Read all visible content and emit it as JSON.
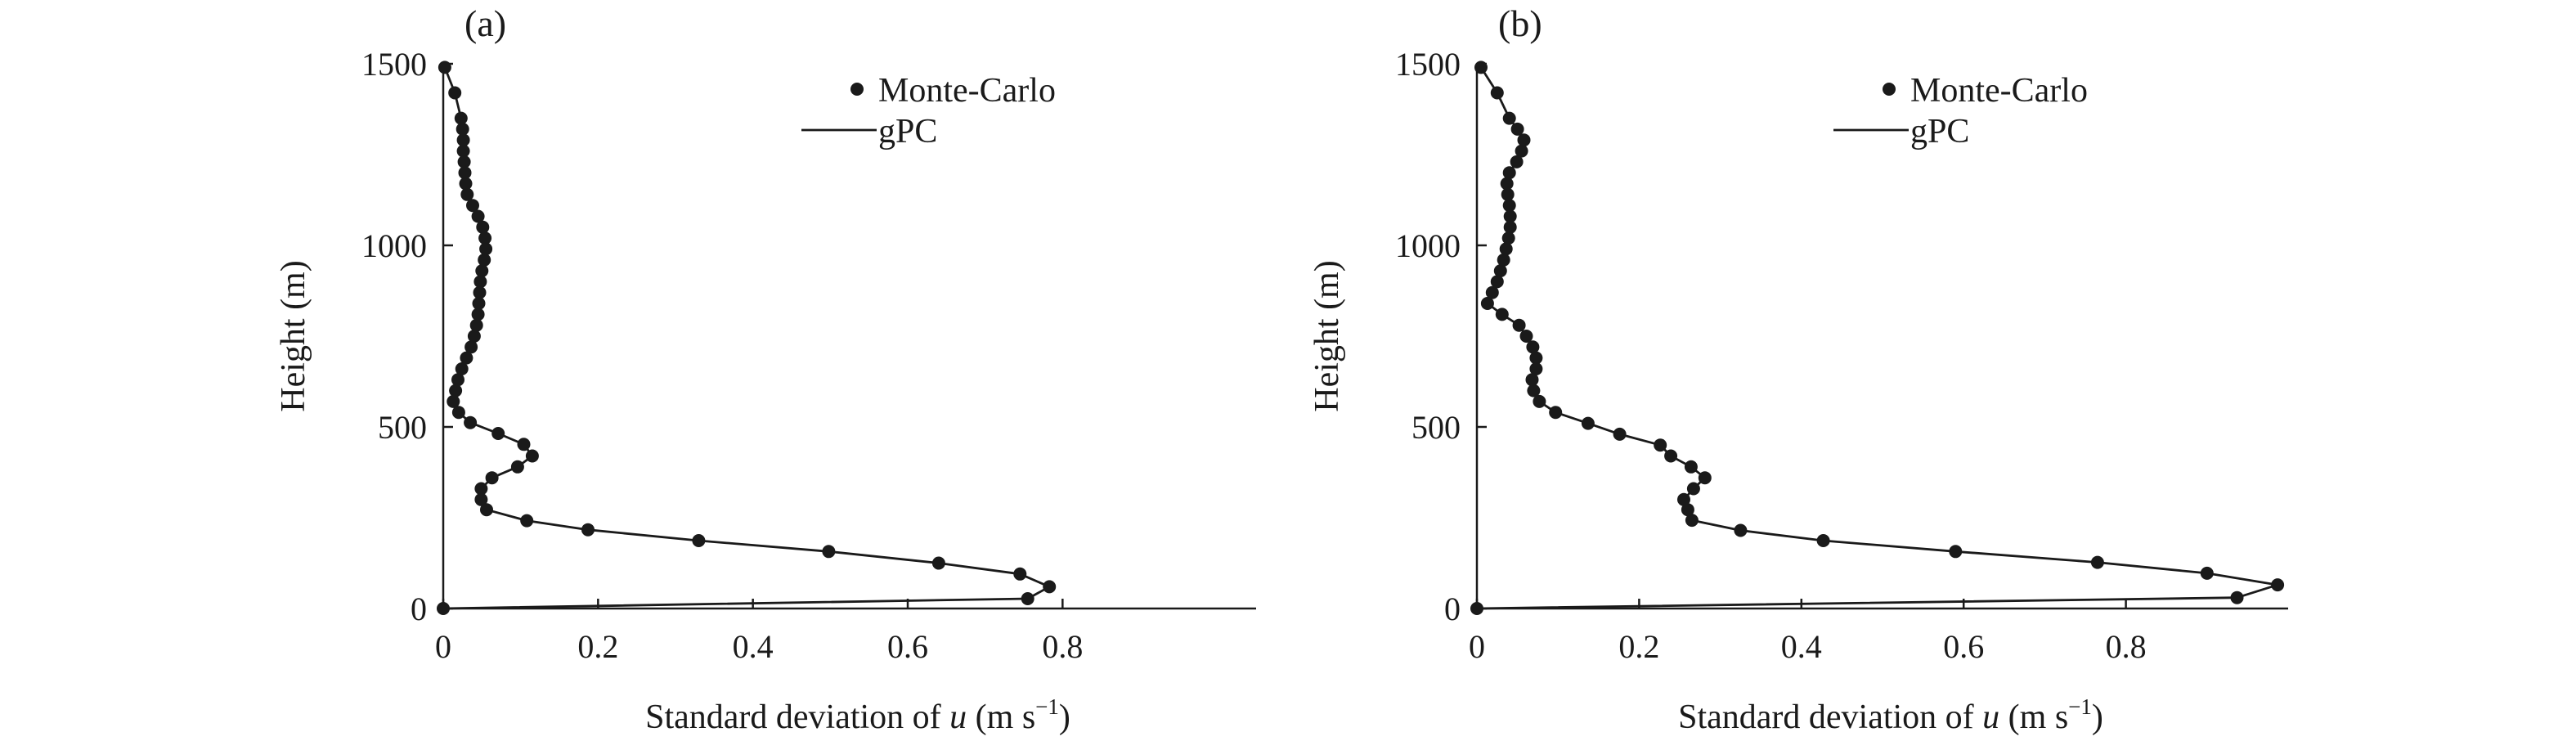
{
  "chart_data": [
    {
      "type": "line",
      "panel_label": "(a)",
      "xlabel_prefix": "Standard deviation of ",
      "xlabel_var": "u",
      "xlabel_unit_open": " (m s",
      "xlabel_unit_exp": "−1",
      "xlabel_unit_close": ")",
      "ylabel": "Height (m)",
      "xlim": [
        0,
        1.05
      ],
      "ylim": [
        0,
        1500
      ],
      "xticks": [
        0,
        0.2,
        0.4,
        0.6,
        0.8
      ],
      "xtick_labels": [
        "0",
        "0.2",
        "0.4",
        "0.6",
        "0.8"
      ],
      "yticks": [
        0,
        500,
        1000,
        1500
      ],
      "ytick_labels": [
        "0",
        "500",
        "1000",
        "1500"
      ],
      "grid": false,
      "legend_position": "top-right",
      "legend": [
        {
          "marker": "dot",
          "label": "Monte-Carlo"
        },
        {
          "marker": "line",
          "label": "gPC"
        }
      ],
      "series": [
        {
          "name": "Monte-Carlo",
          "x": [
            0.0,
            0.755,
            0.783,
            0.745,
            0.64,
            0.498,
            0.33,
            0.187,
            0.108,
            0.056,
            0.049,
            0.049,
            0.063,
            0.096,
            0.115,
            0.104,
            0.071,
            0.035,
            0.02,
            0.013,
            0.016,
            0.019,
            0.024,
            0.03,
            0.036,
            0.04,
            0.043,
            0.045,
            0.046,
            0.047,
            0.048,
            0.05,
            0.053,
            0.055,
            0.054,
            0.051,
            0.045,
            0.038,
            0.031,
            0.029,
            0.028,
            0.027,
            0.026,
            0.026,
            0.025,
            0.023,
            0.015,
            0.002
          ],
          "y": [
            0,
            27,
            60,
            95,
            125,
            157,
            187,
            217,
            242,
            272,
            300,
            330,
            360,
            390,
            420,
            452,
            482,
            512,
            540,
            570,
            600,
            630,
            660,
            690,
            720,
            750,
            780,
            810,
            840,
            870,
            900,
            930,
            960,
            990,
            1020,
            1050,
            1080,
            1110,
            1140,
            1170,
            1200,
            1230,
            1260,
            1290,
            1320,
            1350,
            1420,
            1490
          ]
        },
        {
          "name": "gPC",
          "x": [
            0.0,
            0.755,
            0.783,
            0.745,
            0.64,
            0.498,
            0.33,
            0.187,
            0.108,
            0.056,
            0.049,
            0.049,
            0.063,
            0.096,
            0.115,
            0.104,
            0.071,
            0.035,
            0.02,
            0.013,
            0.016,
            0.019,
            0.024,
            0.03,
            0.036,
            0.04,
            0.043,
            0.045,
            0.046,
            0.047,
            0.048,
            0.05,
            0.053,
            0.055,
            0.054,
            0.051,
            0.045,
            0.038,
            0.031,
            0.029,
            0.028,
            0.027,
            0.026,
            0.026,
            0.025,
            0.023,
            0.015,
            0.002
          ],
          "y": [
            0,
            27,
            60,
            95,
            125,
            157,
            187,
            217,
            242,
            272,
            300,
            330,
            360,
            390,
            420,
            452,
            482,
            512,
            540,
            570,
            600,
            630,
            660,
            690,
            720,
            750,
            780,
            810,
            840,
            870,
            900,
            930,
            960,
            990,
            1020,
            1050,
            1080,
            1110,
            1140,
            1170,
            1200,
            1230,
            1260,
            1290,
            1320,
            1350,
            1420,
            1490
          ]
        }
      ]
    },
    {
      "type": "line",
      "panel_label": "(b)",
      "xlabel_prefix": "Standard deviation of ",
      "xlabel_var": "u",
      "xlabel_unit_open": " (m s",
      "xlabel_unit_exp": "−1",
      "xlabel_unit_close": ")",
      "ylabel": "Height (m)",
      "xlim": [
        0,
        1.0
      ],
      "ylim": [
        0,
        1500
      ],
      "xticks": [
        0,
        0.2,
        0.4,
        0.6,
        0.8
      ],
      "xtick_labels": [
        "0",
        "0.2",
        "0.4",
        "0.6",
        "0.8"
      ],
      "yticks": [
        0,
        500,
        1000,
        1500
      ],
      "ytick_labels": [
        "0",
        "500",
        "1000",
        "1500"
      ],
      "grid": false,
      "legend_position": "top-right",
      "legend": [
        {
          "marker": "dot",
          "label": "Monte-Carlo"
        },
        {
          "marker": "line",
          "label": "gPC"
        }
      ],
      "series": [
        {
          "name": "Monte-Carlo",
          "x": [
            0.0,
            0.937,
            0.987,
            0.9,
            0.765,
            0.59,
            0.427,
            0.325,
            0.265,
            0.26,
            0.255,
            0.267,
            0.281,
            0.264,
            0.239,
            0.226,
            0.176,
            0.137,
            0.097,
            0.077,
            0.07,
            0.068,
            0.073,
            0.073,
            0.069,
            0.061,
            0.052,
            0.031,
            0.013,
            0.019,
            0.025,
            0.029,
            0.033,
            0.036,
            0.039,
            0.041,
            0.041,
            0.04,
            0.038,
            0.037,
            0.04,
            0.049,
            0.055,
            0.058,
            0.05,
            0.04,
            0.025,
            0.005
          ],
          "y": [
            0,
            30,
            65,
            97,
            127,
            157,
            187,
            215,
            243,
            272,
            300,
            330,
            360,
            390,
            420,
            450,
            480,
            510,
            540,
            570,
            600,
            630,
            660,
            690,
            720,
            750,
            780,
            810,
            840,
            870,
            900,
            930,
            960,
            990,
            1020,
            1050,
            1080,
            1110,
            1140,
            1170,
            1200,
            1230,
            1260,
            1290,
            1320,
            1350,
            1420,
            1490
          ]
        },
        {
          "name": "gPC",
          "x": [
            0.0,
            0.937,
            0.987,
            0.9,
            0.765,
            0.59,
            0.427,
            0.325,
            0.265,
            0.26,
            0.255,
            0.267,
            0.281,
            0.264,
            0.239,
            0.226,
            0.176,
            0.137,
            0.097,
            0.077,
            0.07,
            0.068,
            0.073,
            0.073,
            0.069,
            0.061,
            0.052,
            0.031,
            0.013,
            0.019,
            0.025,
            0.029,
            0.033,
            0.036,
            0.039,
            0.041,
            0.041,
            0.04,
            0.038,
            0.037,
            0.04,
            0.049,
            0.055,
            0.058,
            0.05,
            0.04,
            0.025,
            0.005
          ],
          "y": [
            0,
            30,
            65,
            97,
            127,
            157,
            187,
            215,
            243,
            272,
            300,
            330,
            360,
            390,
            420,
            450,
            480,
            510,
            540,
            570,
            600,
            630,
            660,
            690,
            720,
            750,
            780,
            810,
            840,
            870,
            900,
            930,
            960,
            990,
            1020,
            1050,
            1080,
            1110,
            1140,
            1170,
            1200,
            1230,
            1260,
            1290,
            1320,
            1350,
            1420,
            1490
          ]
        }
      ]
    }
  ]
}
